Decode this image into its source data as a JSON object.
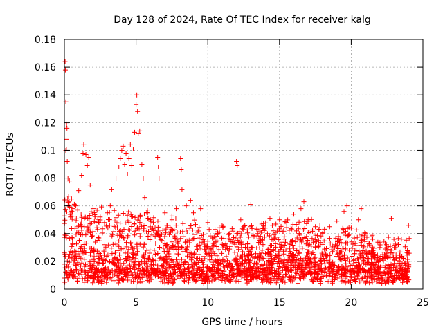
{
  "chart_data": {
    "type": "scatter",
    "title": "Day 128 of 2024, Rate Of TEC Index for receiver kalg",
    "xlabel": "GPS time / hours",
    "ylabel": "ROTI / TECUs",
    "xlim": [
      0,
      25
    ],
    "ylim": [
      0,
      0.18
    ],
    "xticks": [
      "0",
      "5",
      "10",
      "15",
      "20",
      "25"
    ],
    "yticks": [
      "0",
      "0.02",
      "0.04",
      "0.06",
      "0.08",
      "0.1",
      "0.12",
      "0.14",
      "0.16",
      "0.18"
    ],
    "grid": true,
    "legend": "none",
    "marker": "plus",
    "color": "#ff0000",
    "series": [
      {
        "points": [
          [
            0.05,
            0.164
          ],
          [
            0.07,
            0.158
          ],
          [
            0.1,
            0.135
          ],
          [
            0.15,
            0.119
          ],
          [
            0.18,
            0.116
          ],
          [
            0.12,
            0.108
          ],
          [
            0.1,
            0.1
          ],
          [
            0.14,
            0.101
          ],
          [
            0.2,
            0.092
          ],
          [
            0.25,
            0.08
          ],
          [
            0.35,
            0.078
          ],
          [
            0.3,
            0.067
          ],
          [
            0.5,
            0.065
          ],
          [
            0.6,
            0.058
          ],
          [
            0.8,
            0.06
          ],
          [
            1.0,
            0.071
          ],
          [
            1.2,
            0.082
          ],
          [
            1.3,
            0.098
          ],
          [
            1.35,
            0.104
          ],
          [
            1.5,
            0.097
          ],
          [
            1.6,
            0.089
          ],
          [
            1.7,
            0.095
          ],
          [
            1.8,
            0.075
          ],
          [
            2.0,
            0.058
          ],
          [
            2.2,
            0.048
          ],
          [
            2.5,
            0.052
          ],
          [
            2.8,
            0.048
          ],
          [
            3.0,
            0.055
          ],
          [
            3.2,
            0.06
          ],
          [
            3.3,
            0.072
          ],
          [
            3.6,
            0.08
          ],
          [
            3.8,
            0.088
          ],
          [
            3.9,
            0.094
          ],
          [
            4.0,
            0.1
          ],
          [
            4.1,
            0.103
          ],
          [
            4.2,
            0.09
          ],
          [
            4.3,
            0.098
          ],
          [
            4.4,
            0.083
          ],
          [
            4.5,
            0.094
          ],
          [
            4.6,
            0.104
          ],
          [
            4.7,
            0.089
          ],
          [
            4.8,
            0.101
          ],
          [
            4.9,
            0.113
          ],
          [
            5.0,
            0.133
          ],
          [
            5.05,
            0.14
          ],
          [
            5.1,
            0.128
          ],
          [
            5.15,
            0.112
          ],
          [
            5.25,
            0.114
          ],
          [
            5.4,
            0.09
          ],
          [
            5.5,
            0.08
          ],
          [
            5.6,
            0.066
          ],
          [
            5.8,
            0.055
          ],
          [
            6.0,
            0.05
          ],
          [
            6.2,
            0.048
          ],
          [
            6.5,
            0.095
          ],
          [
            6.55,
            0.088
          ],
          [
            6.6,
            0.08
          ],
          [
            7.0,
            0.055
          ],
          [
            7.5,
            0.05
          ],
          [
            7.8,
            0.058
          ],
          [
            8.1,
            0.094
          ],
          [
            8.15,
            0.086
          ],
          [
            8.2,
            0.072
          ],
          [
            8.5,
            0.06
          ],
          [
            8.8,
            0.064
          ],
          [
            9.0,
            0.055
          ],
          [
            9.5,
            0.058
          ],
          [
            10.0,
            0.048
          ],
          [
            10.5,
            0.043
          ],
          [
            11.0,
            0.046
          ],
          [
            11.5,
            0.04
          ],
          [
            12.0,
            0.092
          ],
          [
            12.05,
            0.089
          ],
          [
            12.3,
            0.05
          ],
          [
            12.5,
            0.045
          ],
          [
            13.0,
            0.061
          ],
          [
            13.5,
            0.04
          ],
          [
            14.0,
            0.044
          ],
          [
            14.5,
            0.046
          ],
          [
            15.0,
            0.05
          ],
          [
            15.5,
            0.048
          ],
          [
            16.0,
            0.054
          ],
          [
            16.5,
            0.058
          ],
          [
            16.7,
            0.063
          ],
          [
            17.0,
            0.05
          ],
          [
            17.5,
            0.045
          ],
          [
            18.0,
            0.04
          ],
          [
            18.5,
            0.045
          ],
          [
            19.0,
            0.049
          ],
          [
            19.5,
            0.056
          ],
          [
            19.7,
            0.06
          ],
          [
            20.0,
            0.044
          ],
          [
            20.5,
            0.05
          ],
          [
            20.7,
            0.058
          ],
          [
            21.0,
            0.04
          ],
          [
            21.5,
            0.036
          ],
          [
            22.0,
            0.03
          ],
          [
            22.5,
            0.028
          ],
          [
            22.8,
            0.051
          ],
          [
            23.0,
            0.03
          ],
          [
            23.5,
            0.036
          ],
          [
            24.0,
            0.046
          ]
        ]
      }
    ]
  }
}
